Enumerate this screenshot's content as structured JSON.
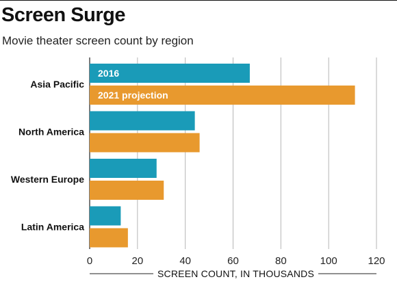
{
  "header": {
    "title": "Screen Surge",
    "subtitle": "Movie theater screen count by region"
  },
  "chart_data": {
    "type": "bar",
    "orientation": "horizontal",
    "title": "Screen Surge",
    "subtitle": "Movie theater screen count by region",
    "xlabel": "SCREEN COUNT, IN THOUSANDS",
    "ylabel": "",
    "categories": [
      "Asia Pacific",
      "North America",
      "Western Europe",
      "Latin America"
    ],
    "series": [
      {
        "name": "2016",
        "values": [
          67,
          44,
          28,
          13
        ],
        "color": "#1a9bb8"
      },
      {
        "name": "2021 projection",
        "values": [
          111,
          46,
          31,
          16
        ],
        "color": "#e8992e"
      }
    ],
    "xlim": [
      0,
      120
    ],
    "xticks": [
      0,
      20,
      40,
      60,
      80,
      100,
      120
    ],
    "grid": "vertical",
    "legend": "inside-first-category-bars"
  }
}
